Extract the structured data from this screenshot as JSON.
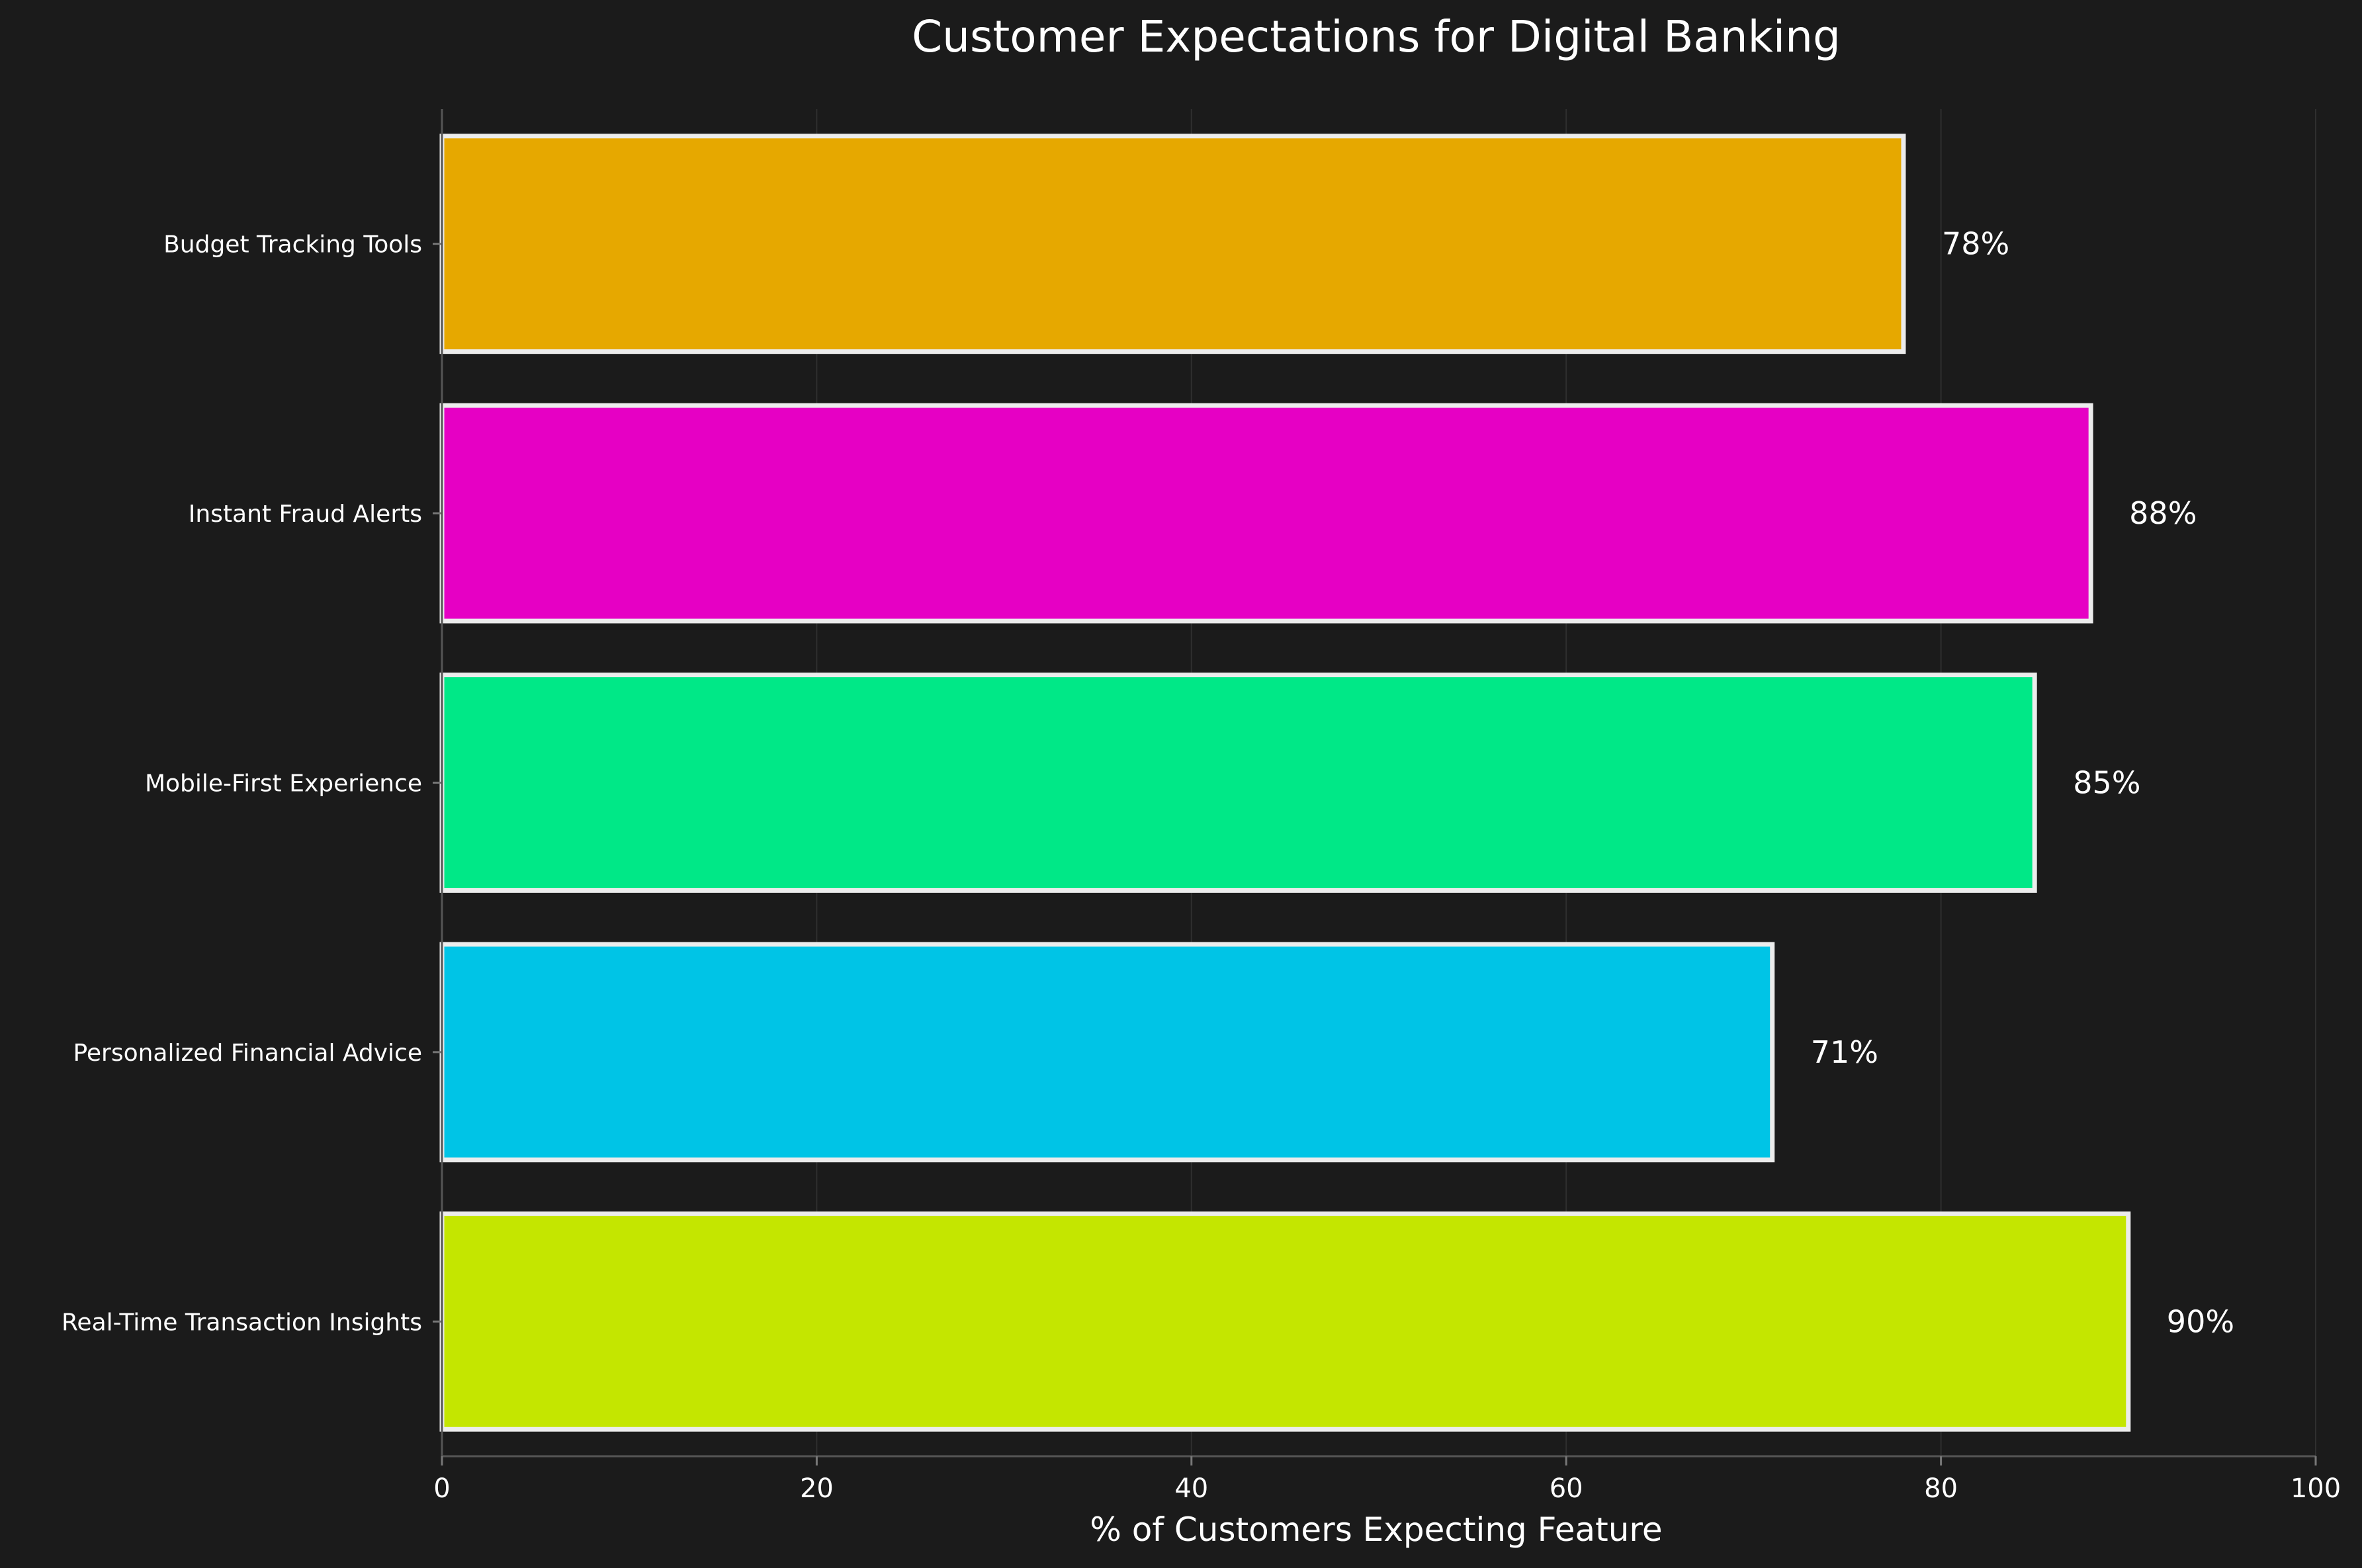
{
  "chart_data": {
    "type": "bar",
    "orientation": "horizontal",
    "title": "Customer Expectations for Digital Banking",
    "xlabel": "% of Customers Expecting Feature",
    "ylabel": "",
    "xlim": [
      0,
      100
    ],
    "xticks": [
      0,
      20,
      40,
      60,
      80,
      100
    ],
    "grid": true,
    "categories": [
      "Budget Tracking Tools",
      "Instant Fraud Alerts",
      "Mobile-First Experience",
      "Personalized Financial Advice",
      "Real-Time Transaction Insights"
    ],
    "values": [
      78,
      88,
      85,
      71,
      90
    ],
    "value_labels": [
      "78%",
      "88%",
      "85%",
      "71%",
      "90%"
    ],
    "colors": [
      "#e6a800",
      "#e600c4",
      "#00e887",
      "#00c4e6",
      "#c4e600"
    ]
  },
  "theme": {
    "background": "#1b1b1b",
    "text": "#ffffff",
    "bar_edge": "#ececec"
  }
}
